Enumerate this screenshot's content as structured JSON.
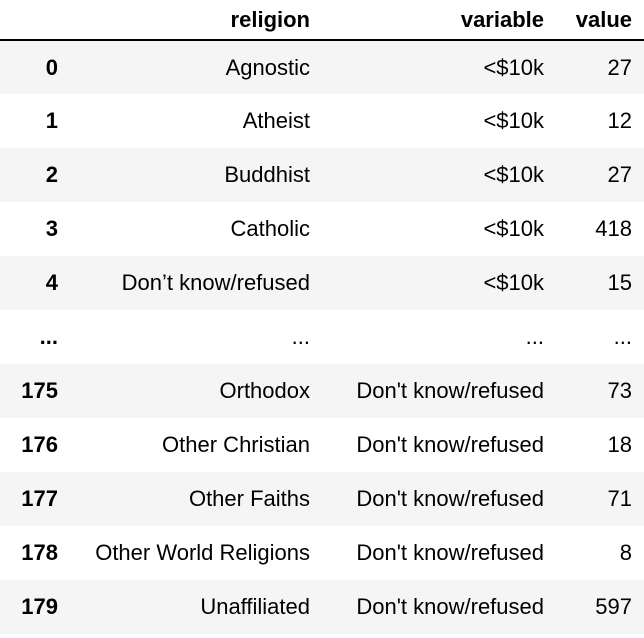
{
  "table": {
    "headers": {
      "index": "",
      "religion": "religion",
      "variable": "variable",
      "value": "value"
    },
    "rows": [
      {
        "index": "0",
        "religion": "Agnostic",
        "variable": "<$10k",
        "value": "27"
      },
      {
        "index": "1",
        "religion": "Atheist",
        "variable": "<$10k",
        "value": "12"
      },
      {
        "index": "2",
        "religion": "Buddhist",
        "variable": "<$10k",
        "value": "27"
      },
      {
        "index": "3",
        "religion": "Catholic",
        "variable": "<$10k",
        "value": "418"
      },
      {
        "index": "4",
        "religion": "Don’t know/refused",
        "variable": "<$10k",
        "value": "15"
      },
      {
        "index": "...",
        "religion": "...",
        "variable": "...",
        "value": "..."
      },
      {
        "index": "175",
        "religion": "Orthodox",
        "variable": "Don't know/refused",
        "value": "73"
      },
      {
        "index": "176",
        "religion": "Other Christian",
        "variable": "Don't know/refused",
        "value": "18"
      },
      {
        "index": "177",
        "religion": "Other Faiths",
        "variable": "Don't know/refused",
        "value": "71"
      },
      {
        "index": "178",
        "religion": "Other World Religions",
        "variable": "Don't know/refused",
        "value": "8"
      },
      {
        "index": "179",
        "religion": "Unaffiliated",
        "variable": "Don't know/refused",
        "value": "597"
      }
    ]
  }
}
